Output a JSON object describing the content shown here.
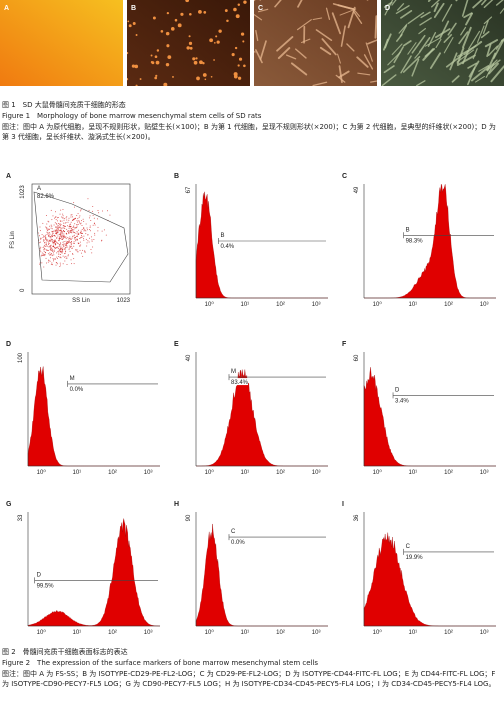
{
  "figure1": {
    "panels": [
      {
        "label": "A"
      },
      {
        "label": "B"
      },
      {
        "label": "C"
      },
      {
        "label": "D"
      }
    ],
    "title_cn": "图 1　SD 大鼠骨髓间充质干细胞的形态",
    "title_en": "Figure 1　Morphology of bone marrow mesenchymal stem cells of SD rats",
    "note": "图注：图中 A 为原代细胞，呈现不规则形状，贴壁生长(×100)；B 为第 1 代细胞，呈现不规则形状(×200)；C 为第 2 代细胞，呈典型的纤维状(×200)；D 为第 3 代细胞，呈长纤维状、漩涡式生长(×200)。"
  },
  "figure2": {
    "scatter": {
      "label": "A",
      "gate": "A",
      "percent": "82.6%",
      "y_axis": "FS Lin",
      "x_axis": "SS Lin",
      "y_max": "1023",
      "origin": "0",
      "x_max": "1023"
    },
    "x_ticks": [
      "10⁰",
      "10¹",
      "10²",
      "10³"
    ],
    "panels": [
      {
        "label": "B",
        "y_max": "67",
        "gate": "B",
        "percent": "0.4%"
      },
      {
        "label": "C",
        "y_max": "49",
        "gate": "B",
        "percent": "98.3%"
      },
      {
        "label": "D",
        "y_max": "100",
        "gate": "M",
        "percent": "0.0%"
      },
      {
        "label": "E",
        "y_max": "40",
        "gate": "M",
        "percent": "83.4%"
      },
      {
        "label": "F",
        "y_max": "60",
        "gate": "D",
        "percent": "3.4%"
      },
      {
        "label": "G",
        "y_max": "33",
        "gate": "D",
        "percent": "99.5%"
      },
      {
        "label": "H",
        "y_max": "90",
        "gate": "C",
        "percent": "0.0%"
      },
      {
        "label": "I",
        "y_max": "36",
        "gate": "C",
        "percent": "19.9%"
      }
    ],
    "title_cn": "图 2　骨髓间充质干细胞表面标志的表达",
    "title_en": "Figure 2　The expression of the surface markers of bone marrow mesenchymal stem cells",
    "note": "图注：图中 A 为 FS-SS；B 为 ISOTYPE-CD29-PE-FL2-LOG；C 为 CD29-PE-FL2-LOG；D 为 ISOTYPE-CD44-FITC-FL LOG；E 为 CD44-FITC-FL LOG；F 为 ISOTYPE-CD90-PECY7-FL5 LOG；G 为 CD90-PECY7-FL5 LOG；H 为 ISOTYPE-CD34-CD45-PECY5-FL4 LOG；I 为 CD34-CD45-PECY5-FL4 LOG。"
  }
}
